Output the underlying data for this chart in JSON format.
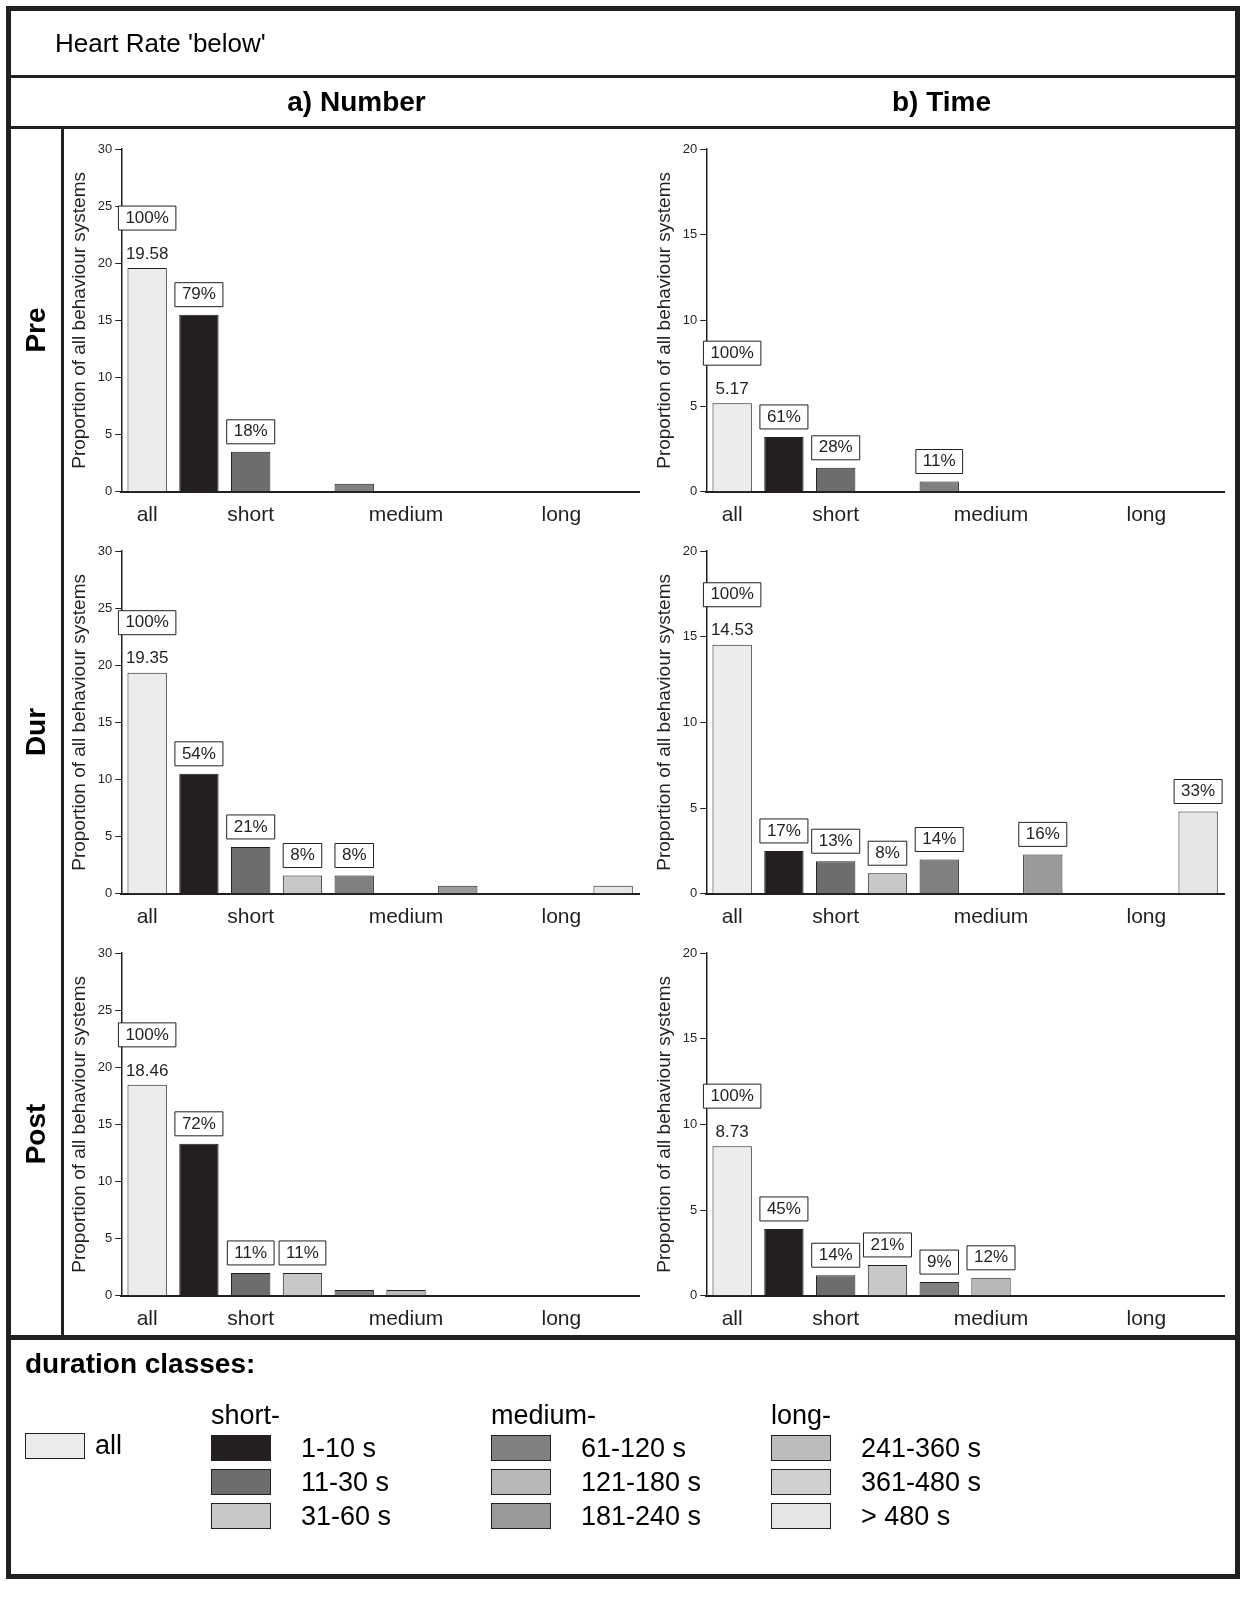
{
  "chart_data": [
    {
      "type": "bar",
      "title": "a) Number",
      "subtitle": "Pre",
      "ylabel": "Proportion of all behaviour systems",
      "categories": [
        "all",
        null,
        "short",
        null,
        null,
        "medium",
        null,
        null,
        "long",
        null
      ],
      "annotations": [
        "Heart Rate 'below'",
        {
          "text": "100%",
          "x": "all",
          "y": 19.58
        },
        {
          "text": "79%",
          "y": 15.5
        },
        {
          "text": "18%",
          "y": 3.5
        }
      ],
      "values": [
        19.58,
        15.5,
        3.5,
        null,
        0.7,
        null,
        null,
        null,
        null,
        null
      ],
      "value_labels": [
        "19.58",
        null,
        null,
        null,
        null,
        null,
        null,
        null,
        null,
        null
      ],
      "colors": [
        "#ececec",
        "#231f20",
        "#6d6d6d",
        "#c8c8c8",
        "#808080",
        "#b8b8b8",
        "#9a9a9a",
        "#bcbcbc",
        "#d0d0d0",
        "#e6e6e6"
      ],
      "ylim": [
        0,
        30
      ],
      "yticks": [
        0,
        5,
        10,
        15,
        20,
        25,
        30
      ]
    },
    {
      "type": "bar",
      "title": "b) Time",
      "ylabel": "Proportion of all behaviour systems",
      "categories": [
        "all",
        null,
        "short",
        null,
        null,
        "medium",
        null,
        null,
        "long",
        null
      ],
      "annotations": [
        {
          "text": "100%",
          "x": "all",
          "y": 5.17
        },
        {
          "text": "61%",
          "y": 3.2
        },
        {
          "text": "28%",
          "y": 1.4
        },
        {
          "text": "11%",
          "y": 0.6
        }
      ],
      "values": [
        5.17,
        3.2,
        1.4,
        null,
        0.6,
        null,
        null,
        null,
        null,
        null
      ],
      "value_labels": [
        "5.17",
        null,
        null,
        null,
        null,
        null,
        null,
        null,
        null,
        null
      ],
      "colors": [
        "#ececec",
        "#231f20",
        "#6d6d6d",
        "#c8c8c8",
        "#808080",
        "#b8b8b8",
        "#9a9a9a",
        "#bcbcbc",
        "#d0d0d0",
        "#e6e6e6"
      ],
      "ylim": [
        0,
        20
      ],
      "yticks": [
        0,
        5,
        10,
        15,
        20
      ]
    },
    {
      "type": "bar",
      "subtitle": "Dur",
      "ylabel": "Proportion of all behaviour systems",
      "categories": [
        "all",
        null,
        "short",
        null,
        null,
        "medium",
        null,
        null,
        "long",
        null
      ],
      "annotations": [
        {
          "text": "100%",
          "x": "all",
          "y": 19.35
        },
        {
          "text": "54%",
          "y": 10.5
        },
        {
          "text": "21%",
          "y": 4.1
        },
        {
          "text": "8%",
          "y": 1.6
        },
        {
          "text": "8%",
          "y": 1.6
        }
      ],
      "values": [
        19.35,
        10.5,
        4.1,
        1.6,
        1.6,
        null,
        0.7,
        null,
        null,
        0.7
      ],
      "value_labels": [
        "19.35",
        null,
        null,
        null,
        null,
        null,
        null,
        null,
        null,
        null
      ],
      "colors": [
        "#ececec",
        "#231f20",
        "#6d6d6d",
        "#c8c8c8",
        "#808080",
        "#b8b8b8",
        "#9a9a9a",
        "#bcbcbc",
        "#d0d0d0",
        "#e6e6e6"
      ],
      "ylim": [
        0,
        30
      ],
      "yticks": [
        0,
        5,
        10,
        15,
        20,
        25,
        30
      ]
    },
    {
      "type": "bar",
      "ylabel": "Proportion of all behaviour systems",
      "categories": [
        "all",
        null,
        "short",
        null,
        null,
        "medium",
        null,
        null,
        "long",
        null
      ],
      "annotations": [
        {
          "text": "100%",
          "x": "all",
          "y": 14.53
        },
        {
          "text": "17%",
          "y": 2.5
        },
        {
          "text": "13%",
          "y": 1.9
        },
        {
          "text": "8%",
          "y": 1.2
        },
        {
          "text": "14%",
          "y": 2.0
        },
        {
          "text": "16%",
          "y": 2.3
        },
        {
          "text": "33%",
          "y": 4.8
        }
      ],
      "values": [
        14.53,
        2.5,
        1.9,
        1.2,
        2.0,
        null,
        2.3,
        null,
        null,
        4.8
      ],
      "value_labels": [
        "14.53",
        null,
        null,
        null,
        null,
        null,
        null,
        null,
        null,
        null
      ],
      "colors": [
        "#ececec",
        "#231f20",
        "#6d6d6d",
        "#c8c8c8",
        "#808080",
        "#b8b8b8",
        "#9a9a9a",
        "#bcbcbc",
        "#d0d0d0",
        "#e6e6e6"
      ],
      "ylim": [
        0,
        20
      ],
      "yticks": [
        0,
        5,
        10,
        15,
        20
      ]
    },
    {
      "type": "bar",
      "subtitle": "Post",
      "ylabel": "Proportion of all behaviour systems",
      "categories": [
        "all",
        null,
        "short",
        null,
        null,
        "medium",
        null,
        null,
        "long",
        null
      ],
      "annotations": [
        {
          "text": "100%",
          "x": "all",
          "y": 18.46
        },
        {
          "text": "72%",
          "y": 13.3
        },
        {
          "text": "11%",
          "y": 2.0
        },
        {
          "text": "11%",
          "y": 2.0
        }
      ],
      "values": [
        18.46,
        13.3,
        2.0,
        2.0,
        0.5,
        0.5,
        null,
        null,
        null,
        null
      ],
      "value_labels": [
        "18.46",
        null,
        null,
        null,
        null,
        null,
        null,
        null,
        null,
        null
      ],
      "colors": [
        "#ececec",
        "#231f20",
        "#6d6d6d",
        "#c8c8c8",
        "#808080",
        "#b8b8b8",
        "#9a9a9a",
        "#bcbcbc",
        "#d0d0d0",
        "#e6e6e6"
      ],
      "ylim": [
        0,
        30
      ],
      "yticks": [
        0,
        5,
        10,
        15,
        20,
        25,
        30
      ]
    },
    {
      "type": "bar",
      "ylabel": "Proportion of all behaviour systems",
      "categories": [
        "all",
        null,
        "short",
        null,
        null,
        "medium",
        null,
        null,
        "long",
        null
      ],
      "annotations": [
        "short-",
        "medium-",
        "long-",
        {
          "text": "100%",
          "x": "all",
          "y": 8.73
        },
        {
          "text": "45%",
          "y": 3.9
        },
        {
          "text": "14%",
          "y": 1.2
        },
        {
          "text": "21%",
          "y": 1.8
        },
        {
          "text": "9%",
          "y": 0.8
        },
        {
          "text": "12%",
          "y": 1.05
        }
      ],
      "legend": "bottom",
      "legend_title": "duration classes:",
      "series": [
        {
          "name": "all",
          "color": "#ececec",
          "values": [
            8.73,
            null,
            null,
            null,
            null,
            null,
            null,
            null,
            null,
            null
          ],
          "value_labels": [
            "8.73",
            null,
            null,
            null,
            null,
            null,
            null,
            null,
            null,
            null
          ]
        },
        {
          "name": "1-10 s",
          "color": "#231f20",
          "values": [
            null,
            3.9,
            null,
            null,
            null,
            null,
            null,
            null,
            null,
            null
          ]
        },
        {
          "name": "11-30 s",
          "color": "#6d6d6d",
          "values": [
            null,
            null,
            1.2,
            null,
            null,
            null,
            null,
            null,
            null,
            null
          ]
        },
        {
          "name": "31-60 s",
          "color": "#c8c8c8",
          "values": [
            null,
            null,
            null,
            1.8,
            null,
            null,
            null,
            null,
            null,
            null
          ]
        },
        {
          "name": "61-120 s",
          "color": "#808080",
          "values": [
            null,
            null,
            null,
            null,
            0.8,
            null,
            null,
            null,
            null,
            null
          ]
        },
        {
          "name": "121-180 s",
          "color": "#b8b8b8",
          "values": [
            null,
            null,
            null,
            null,
            null,
            1.05,
            null,
            null,
            null,
            null
          ]
        },
        {
          "name": "181-240 s",
          "color": "#9a9a9a",
          "values": [
            null,
            null,
            null,
            null,
            null,
            null,
            null,
            null,
            null,
            null
          ]
        },
        {
          "name": "241-360 s",
          "color": "#bcbcbc",
          "values": [
            null,
            null,
            null,
            null,
            null,
            null,
            null,
            null,
            null,
            null
          ]
        },
        {
          "name": "361-480 s",
          "color": "#d0d0d0",
          "values": [
            null,
            null,
            null,
            null,
            null,
            null,
            null,
            null,
            null,
            null
          ]
        },
        {
          "name": "> 480 s",
          "color": "#e6e6e6",
          "values": [
            null,
            null,
            null,
            null,
            null,
            null,
            null,
            null,
            null,
            null
          ]
        }
      ],
      "ylim": [
        0,
        20
      ],
      "yticks": [
        0,
        5,
        10,
        15,
        20
      ]
    }
  ]
}
